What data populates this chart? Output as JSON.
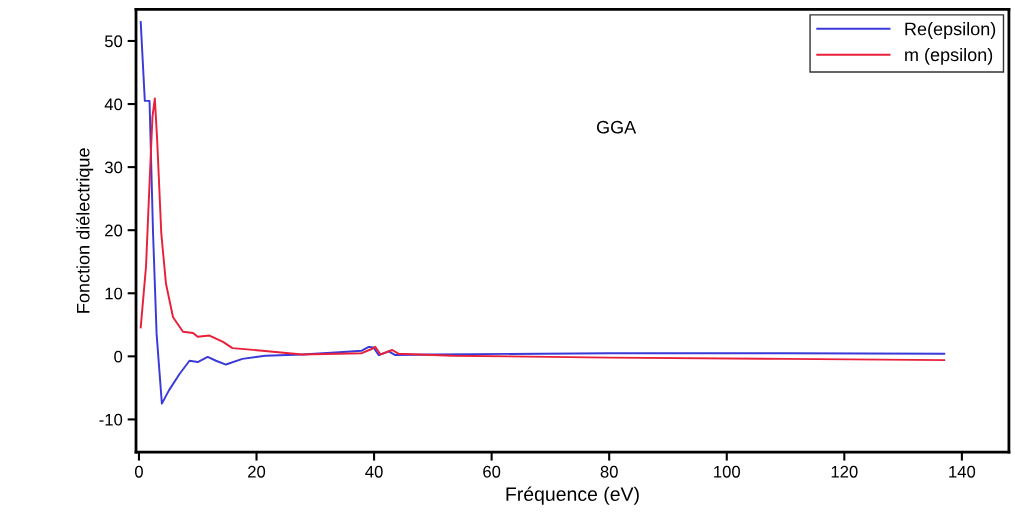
{
  "chart_data": {
    "type": "line",
    "xlabel": "Fréquence (eV)",
    "ylabel": "Fonction diélectrique",
    "annotations": [
      "GGA"
    ],
    "xlim": [
      -0.5,
      148
    ],
    "ylim": [
      -15.2,
      55
    ],
    "xticks": [
      0,
      20,
      40,
      60,
      80,
      100,
      120,
      140
    ],
    "yticks": [
      -10,
      0,
      10,
      20,
      30,
      40,
      50
    ],
    "grid": false,
    "legend": "top right",
    "marker": "none",
    "line_style": "solid",
    "series": [
      {
        "name": "Re(epsilon)",
        "color": "#3a3ad8",
        "x": [
          0.3,
          1.0,
          1.8,
          2.4,
          3.0,
          3.9,
          5.1,
          6.9,
          8.6,
          10,
          11.7,
          13.1,
          14.8,
          17.6,
          21.5,
          27.8,
          33.4,
          37.9,
          39.1,
          39.9,
          40.8,
          42.5,
          43.6,
          50,
          80,
          110,
          137
        ],
        "values": [
          53,
          40.5,
          40.5,
          19.5,
          3.6,
          -7.5,
          -5.4,
          -2.8,
          -0.7,
          -0.9,
          -0.1,
          -0.7,
          -1.3,
          -0.4,
          0.1,
          0.3,
          0.6,
          0.9,
          1.5,
          1.4,
          0.2,
          0.8,
          0.2,
          0.3,
          0.5,
          0.5,
          0.4
        ]
      },
      {
        "name": "m (epsilon)",
        "color": "#e8203a",
        "x": [
          0.3,
          1.2,
          1.8,
          2.3,
          2.7,
          3.1,
          3.8,
          4.6,
          5.8,
          7.5,
          9.2,
          10,
          12,
          14.3,
          15.9,
          21,
          25.5,
          27.8,
          37.9,
          39.7,
          40.2,
          41.1,
          43.1,
          44.2,
          53.4,
          80,
          110,
          137
        ],
        "values": [
          4.6,
          14.2,
          27.4,
          38,
          40.9,
          34.3,
          19.5,
          11.5,
          6.2,
          3.9,
          3.7,
          3.1,
          3.3,
          2.3,
          1.3,
          0.9,
          0.5,
          0.3,
          0.5,
          1.2,
          1.5,
          0.3,
          1.0,
          0.4,
          0.1,
          -0.2,
          -0.4,
          -0.6
        ]
      }
    ]
  }
}
